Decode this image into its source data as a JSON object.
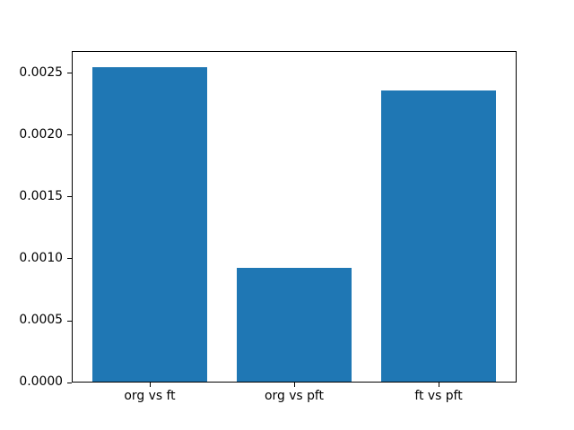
{
  "figure": {
    "background_color": "#ffffff",
    "frame_color": "#000000",
    "text_color": "#000000"
  },
  "chart_data": {
    "type": "bar",
    "title": "",
    "xlabel": "",
    "ylabel": "",
    "categories": [
      "org vs ft",
      "org vs pft",
      "ft vs pft"
    ],
    "values": [
      0.00255,
      0.00093,
      0.00236
    ],
    "bar_color": "#1f77b4",
    "bar_width": 0.8,
    "xlim": [
      -0.54,
      2.54
    ],
    "ylim": [
      0,
      0.00268
    ],
    "yticks": [
      0,
      0.0005,
      0.001,
      0.0015,
      0.002,
      0.0025
    ],
    "ytick_labels": [
      "0.0000",
      "0.0005",
      "0.0010",
      "0.0015",
      "0.0020",
      "0.0025"
    ],
    "grid": false,
    "legend_position": "none"
  }
}
